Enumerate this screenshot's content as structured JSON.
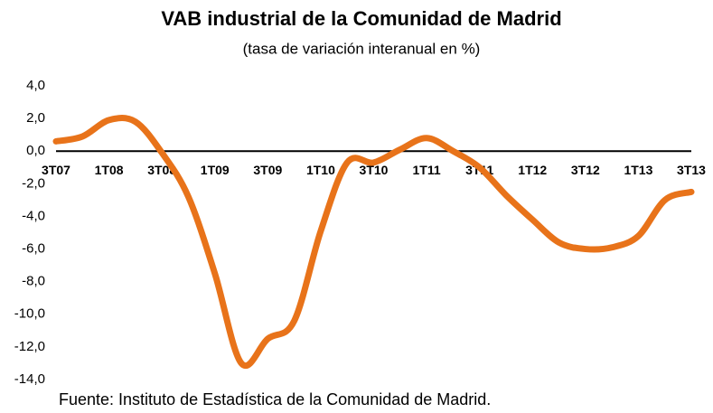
{
  "chart_data": {
    "type": "line",
    "title": "VAB industrial de la Comunidad de Madrid",
    "subtitle": "(tasa de variación interanual en %)",
    "source": "Fuente: Instituto de Estadística de la Comunidad de Madrid.",
    "categories": [
      "3T07",
      null,
      "1T08",
      null,
      "3T08",
      null,
      "1T09",
      null,
      "3T09",
      null,
      "1T10",
      null,
      "3T10",
      null,
      "1T11",
      null,
      "3T11",
      null,
      "1T12",
      null,
      "3T12",
      null,
      "1T13",
      null,
      "3T13"
    ],
    "series": [
      {
        "name": "VAB industrial",
        "color": "#e8731a",
        "values": [
          0.6,
          0.9,
          1.9,
          1.8,
          -0.1,
          -2.8,
          -7.5,
          -13.0,
          -11.5,
          -10.4,
          -4.9,
          -0.7,
          -0.7,
          0.1,
          0.8,
          0.0,
          -1.0,
          -2.7,
          -4.2,
          -5.6,
          -6.0,
          -5.9,
          -5.2,
          -3.0,
          -2.5
        ]
      }
    ],
    "ylim": [
      -14,
      4
    ],
    "yticks": [
      {
        "value": -14,
        "label": "-14,0"
      },
      {
        "value": -12,
        "label": "-12,0"
      },
      {
        "value": -10,
        "label": "-10,0"
      },
      {
        "value": -8,
        "label": "-8,0"
      },
      {
        "value": -6,
        "label": "-6,0"
      },
      {
        "value": -4,
        "label": "-4,0"
      },
      {
        "value": -2,
        "label": "-2,0"
      },
      {
        "value": 0,
        "label": "0,0"
      },
      {
        "value": 2,
        "label": "2,0"
      },
      {
        "value": 4,
        "label": "4,0"
      }
    ]
  }
}
